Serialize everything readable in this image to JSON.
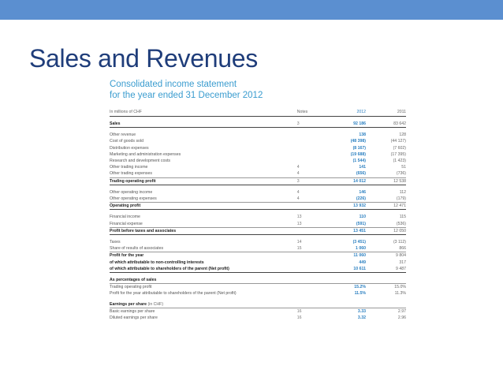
{
  "slide": {
    "title": "Sales and Revenues"
  },
  "document": {
    "title_line1": "Consolidated income statement",
    "title_line2": "for the year ended 31 December 2012"
  },
  "table": {
    "header": {
      "label": "In millions of CHF",
      "notes": "Notes",
      "y2012": "2012",
      "y2011": "2011"
    },
    "rows": [
      {
        "label": "Sales",
        "notes": "3",
        "y2012": "92 186",
        "y2011": "83 642",
        "style": "bold",
        "gap_before": true
      },
      {
        "label": "Other revenue",
        "notes": "",
        "y2012": "138",
        "y2011": "128",
        "gap_before": true
      },
      {
        "label": "Cost of goods sold",
        "notes": "",
        "y2012": "(48 398)",
        "y2011": "(44 127)"
      },
      {
        "label": "Distribution expenses",
        "notes": "",
        "y2012": "(8 167)",
        "y2011": "(7 602)"
      },
      {
        "label": "Marketing and administration expenses",
        "notes": "",
        "y2012": "(19 688)",
        "y2011": "(17 395)"
      },
      {
        "label": "Research and development costs",
        "notes": "",
        "y2012": "(1 544)",
        "y2011": "(1 423)"
      },
      {
        "label": "Other trading income",
        "notes": "4",
        "y2012": "141",
        "y2011": "51"
      },
      {
        "label": "Other trading expenses",
        "notes": "4",
        "y2012": "(656)",
        "y2011": "(736)"
      },
      {
        "label": "Trading operating profit",
        "notes": "3",
        "y2012": "14 012",
        "y2011": "12 538",
        "style": "bold"
      },
      {
        "label": "Other operating income",
        "notes": "4",
        "y2012": "146",
        "y2011": "112",
        "gap_before": true
      },
      {
        "label": "Other operating expenses",
        "notes": "4",
        "y2012": "(226)",
        "y2011": "(179)"
      },
      {
        "label": "Operating profit",
        "notes": "",
        "y2012": "13 932",
        "y2011": "12 471",
        "style": "bold"
      },
      {
        "label": "Financial income",
        "notes": "13",
        "y2012": "110",
        "y2011": "115",
        "gap_before": true
      },
      {
        "label": "Financial expense",
        "notes": "13",
        "y2012": "(591)",
        "y2011": "(536)"
      },
      {
        "label": "Profit before taxes and associates",
        "notes": "",
        "y2012": "13 451",
        "y2011": "12 050",
        "style": "bold"
      },
      {
        "label": "Taxes",
        "notes": "14",
        "y2012": "(3 451)",
        "y2011": "(3 112)",
        "gap_before": true
      },
      {
        "label": "Share of results of associates",
        "notes": "15",
        "y2012": "1 060",
        "y2011": "866"
      },
      {
        "label": "Profit for the year",
        "notes": "",
        "y2012": "11 060",
        "y2011": "9 804",
        "style": "bold"
      },
      {
        "label": "of which attributable to non-controlling interests",
        "notes": "",
        "y2012": "449",
        "y2011": "317",
        "style": "bold"
      },
      {
        "label": "of which attributable to shareholders of the parent (Net profit)",
        "notes": "",
        "y2012": "10 611",
        "y2011": "9 487",
        "style": "bold",
        "unit_split": true
      }
    ],
    "percentages": {
      "heading": "As percentages of sales",
      "rows": [
        {
          "label": "Trading operating profit",
          "notes": "",
          "y2012": "15.2%",
          "y2011": "15.0%"
        },
        {
          "label": "Profit for the year attributable to shareholders of the parent (Net profit)",
          "notes": "",
          "y2012": "11.5%",
          "y2011": "11.3%"
        }
      ]
    },
    "eps": {
      "heading": "Earnings per share",
      "heading_unit": "(in CHF)",
      "rows": [
        {
          "label": "Basic earnings per share",
          "notes": "16",
          "y2012": "3.33",
          "y2011": "2.97"
        },
        {
          "label": "Diluted earnings per share",
          "notes": "16",
          "y2012": "3.32",
          "y2011": "2.96"
        }
      ]
    }
  }
}
